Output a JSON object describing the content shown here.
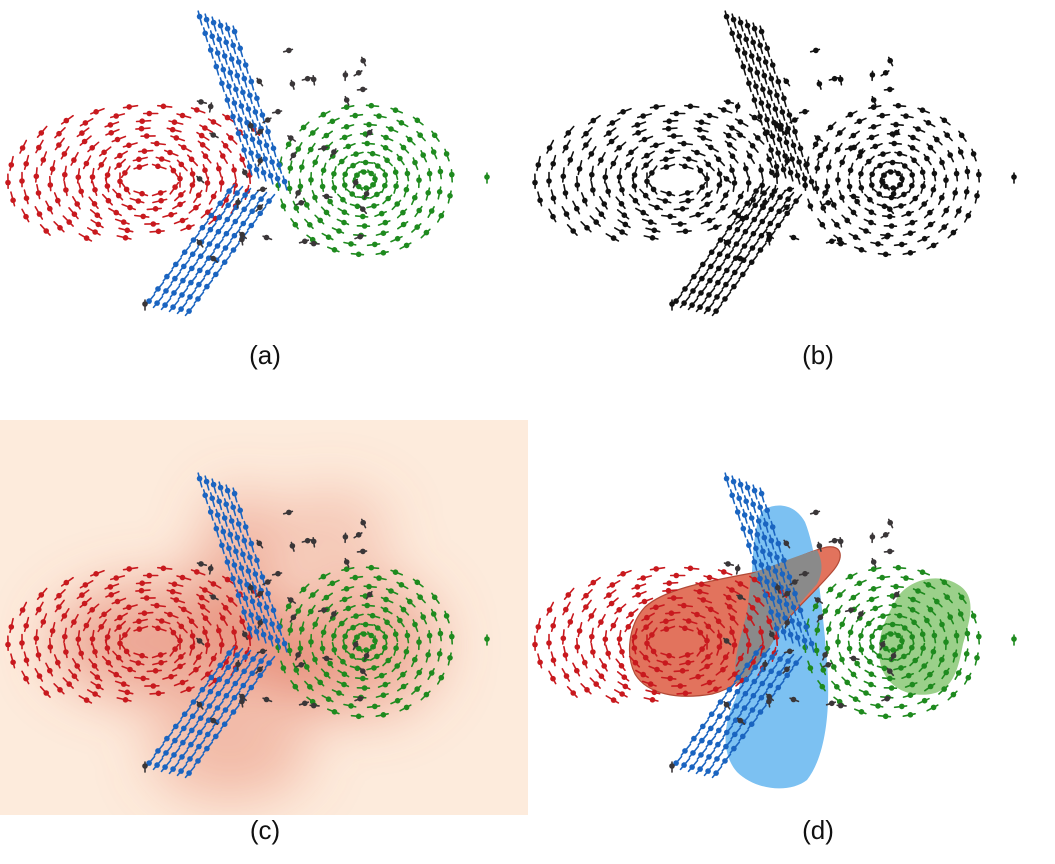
{
  "figure": {
    "panels": [
      {
        "id": "a",
        "caption": "(a)",
        "style": "colored"
      },
      {
        "id": "b",
        "caption": "(b)",
        "style": "black"
      },
      {
        "id": "c",
        "caption": "(c)",
        "style": "density"
      },
      {
        "id": "d",
        "caption": "(d)",
        "style": "regions"
      }
    ],
    "colors": {
      "cluster_red": "#c8191e",
      "cluster_blue": "#1a64c0",
      "cluster_green": "#1e8a1e",
      "noise": "#3a3638",
      "black": "#111111",
      "density_light": "#fdebdc",
      "density_dark": "#e0705a",
      "region_red": "#e2735d",
      "region_blue": "#7cc1f2",
      "region_green": "#9bd08a",
      "region_overlap": "#8a8a8a"
    }
  }
}
